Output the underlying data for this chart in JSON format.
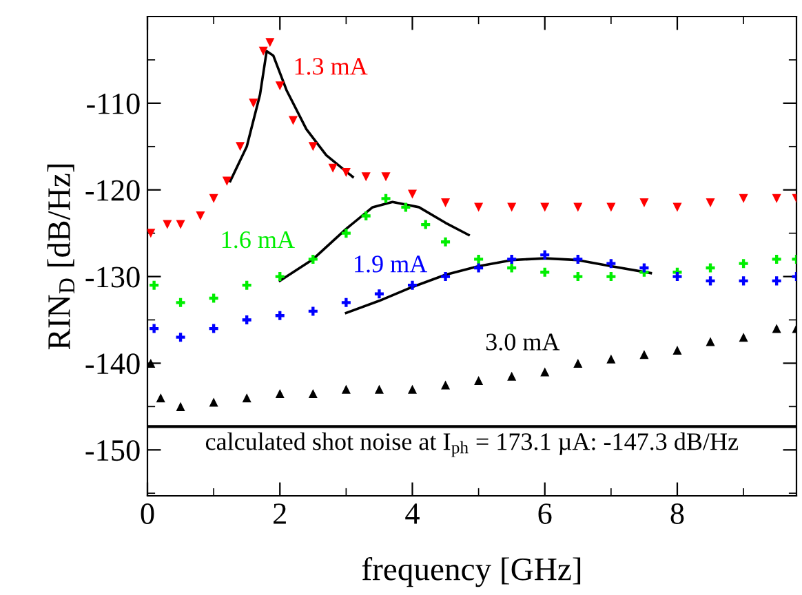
{
  "chart_data": {
    "type": "scatter",
    "xlabel": "frequency [GHz]",
    "ylabel": "RIN$_{D}$ [dB/Hz]",
    "xlim": [
      0,
      9.8
    ],
    "ylim": [
      -155.3,
      -100
    ],
    "xticks": [
      0,
      2,
      4,
      6,
      8
    ],
    "yticks": [
      -150,
      -140,
      -130,
      -120,
      -110
    ],
    "grid": false,
    "legend": false,
    "series": [
      {
        "name": "1.3 mA",
        "color": "#ff0000",
        "marker": "triangle_down",
        "x": [
          0.05,
          0.3,
          0.5,
          0.8,
          1.0,
          1.2,
          1.4,
          1.6,
          1.75,
          1.85,
          2.0,
          2.2,
          2.5,
          2.8,
          3.0,
          3.3,
          3.6,
          4.0,
          4.5,
          5.0,
          5.5,
          6.0,
          6.5,
          7.0,
          7.5,
          8.0,
          8.5,
          9.0,
          9.5,
          9.8
        ],
        "values": [
          -125,
          -124,
          -124,
          -123,
          -121,
          -119,
          -115,
          -110,
          -104,
          -103,
          -108,
          -112,
          -115,
          -117.5,
          -118,
          -118.5,
          -118.5,
          -120.5,
          -121.5,
          -122,
          -122,
          -122,
          -122,
          -122,
          -121.5,
          -122,
          -121.5,
          -121,
          -121,
          -121
        ]
      },
      {
        "name": "1.6 mA",
        "color": "#00ee00",
        "marker": "cross",
        "x": [
          0.1,
          0.5,
          1.0,
          1.5,
          2.0,
          2.5,
          3.0,
          3.3,
          3.6,
          3.9,
          4.2,
          4.5,
          5.0,
          5.5,
          6.0,
          6.5,
          7.0,
          7.5,
          8.0,
          8.5,
          9.0,
          9.5,
          9.8
        ],
        "values": [
          -131,
          -133,
          -132.5,
          -131,
          -130,
          -128,
          -125,
          -123,
          -121,
          -122,
          -124,
          -126,
          -128,
          -129,
          -129.5,
          -130,
          -130,
          -129.5,
          -129.5,
          -129,
          -128.5,
          -128,
          -128
        ]
      },
      {
        "name": "1.9 mA",
        "color": "#0000ff",
        "marker": "cross",
        "x": [
          0.1,
          0.5,
          1.0,
          1.5,
          2.0,
          2.5,
          3.0,
          3.5,
          4.0,
          4.5,
          5.0,
          5.5,
          6.0,
          6.5,
          7.0,
          7.5,
          8.0,
          8.5,
          9.0,
          9.5,
          9.8
        ],
        "values": [
          -136,
          -137,
          -136,
          -135,
          -134.5,
          -134,
          -133,
          -132,
          -131,
          -130,
          -129,
          -128,
          -127.5,
          -128,
          -128.5,
          -129,
          -130,
          -130.5,
          -130.5,
          -130.5,
          -130
        ]
      },
      {
        "name": "3.0 mA",
        "color": "#000000",
        "marker": "triangle",
        "x": [
          0.05,
          0.2,
          0.5,
          1.0,
          1.5,
          2.0,
          2.5,
          3.0,
          3.5,
          4.0,
          4.5,
          5.0,
          5.5,
          6.0,
          6.5,
          7.0,
          7.5,
          8.0,
          8.5,
          9.0,
          9.5,
          9.8
        ],
        "values": [
          -140,
          -144,
          -145,
          -144.5,
          -144,
          -143.5,
          -143.5,
          -143,
          -143,
          -143,
          -142.5,
          -142,
          -141.5,
          -141,
          -140,
          -139.5,
          -139,
          -138.5,
          -137.5,
          -137,
          -136,
          -136
        ]
      },
      {
        "type": "line",
        "color": "#000000",
        "x": [
          1.25,
          1.5,
          1.7,
          1.8,
          1.9,
          2.1,
          2.4,
          2.7,
          3.1
        ],
        "values": [
          -119,
          -115,
          -109,
          -104,
          -104.5,
          -108.5,
          -113,
          -116,
          -118.5
        ]
      },
      {
        "type": "line",
        "color": "#000000",
        "x": [
          2.0,
          2.5,
          3.0,
          3.4,
          3.7,
          4.1,
          4.5,
          4.85
        ],
        "values": [
          -130.5,
          -128,
          -124.5,
          -122,
          -121.4,
          -122,
          -123.8,
          -125.2
        ]
      },
      {
        "type": "line",
        "color": "#000000",
        "x": [
          3.0,
          3.5,
          4.0,
          4.5,
          5.0,
          5.5,
          6.0,
          6.5,
          7.0,
          7.6
        ],
        "values": [
          -134.2,
          -132.8,
          -131.2,
          -129.8,
          -128.8,
          -128.1,
          -127.9,
          -128.1,
          -128.8,
          -129.6
        ]
      }
    ],
    "ref_lines": [
      {
        "axis": "y",
        "value": -147.3,
        "label": "calculated shot noise at I$_{ph}$ = 173.1 µA: -147.3 dB/Hz",
        "color": "#000000"
      }
    ]
  }
}
